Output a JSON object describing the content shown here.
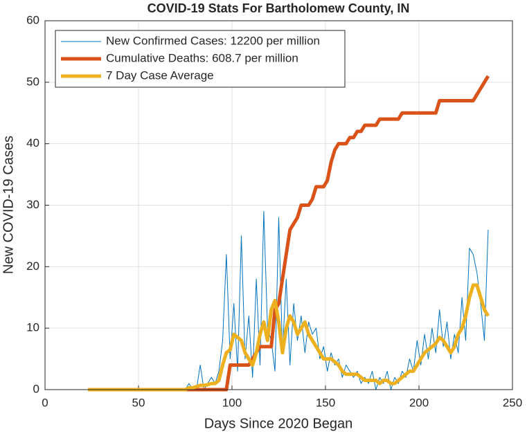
{
  "chart_data": {
    "type": "line",
    "title": "COVID-19 Stats For Bartholomew County, IN",
    "xlabel": "Days Since 2020 Began",
    "ylabel": "New COVID-19 Cases",
    "x": [
      23,
      25,
      27,
      29,
      31,
      33,
      35,
      37,
      39,
      41,
      43,
      45,
      47,
      49,
      51,
      53,
      55,
      57,
      59,
      61,
      63,
      65,
      67,
      69,
      71,
      73,
      75,
      77,
      79,
      81,
      83,
      85,
      87,
      89,
      91,
      93,
      95,
      97,
      99,
      101,
      103,
      105,
      107,
      109,
      111,
      113,
      115,
      117,
      119,
      121,
      123,
      125,
      127,
      129,
      131,
      133,
      135,
      137,
      139,
      141,
      143,
      145,
      147,
      149,
      151,
      153,
      155,
      157,
      159,
      161,
      163,
      165,
      167,
      169,
      171,
      173,
      175,
      177,
      179,
      181,
      183,
      185,
      187,
      189,
      191,
      193,
      195,
      197,
      199,
      201,
      203,
      205,
      207,
      209,
      211,
      213,
      215,
      217,
      219,
      221,
      223,
      225,
      227,
      229,
      231,
      233,
      235,
      237
    ],
    "series": [
      {
        "name": "New Confirmed Cases: 12200 per million",
        "color": "#0072BD",
        "width": 1,
        "values": [
          0,
          0,
          0,
          0,
          0,
          0,
          0,
          0,
          0,
          0,
          0,
          0,
          0,
          0,
          0,
          0,
          0,
          0,
          0,
          0,
          0,
          0,
          0,
          0,
          0,
          0,
          0,
          1,
          0,
          0,
          4,
          0,
          1,
          2,
          1,
          3,
          8,
          22,
          5,
          14,
          3,
          25,
          5,
          12,
          2,
          18,
          4,
          29,
          10,
          8,
          3,
          28,
          6,
          18,
          4,
          14,
          8,
          12,
          6,
          11,
          9,
          10,
          5,
          7,
          3,
          6,
          4,
          5,
          2,
          4,
          3,
          2,
          3,
          1,
          2,
          1,
          3,
          0,
          2,
          1,
          3,
          0,
          2,
          1,
          3,
          2,
          5,
          3,
          8,
          4,
          9,
          5,
          10,
          6,
          13,
          7,
          11,
          5,
          9,
          6,
          15,
          8,
          23,
          22,
          19,
          14,
          8,
          26
        ]
      },
      {
        "name": "Cumulative Deaths: 608.7 per million",
        "color": "#D95319",
        "width": 5,
        "values": [
          0,
          0,
          0,
          0,
          0,
          0,
          0,
          0,
          0,
          0,
          0,
          0,
          0,
          0,
          0,
          0,
          0,
          0,
          0,
          0,
          0,
          0,
          0,
          0,
          0,
          0,
          0,
          0,
          0,
          0,
          0,
          0,
          0,
          0,
          0,
          0,
          0,
          0,
          4,
          4,
          4,
          4,
          4,
          4,
          5,
          6,
          7,
          7,
          7,
          7,
          13,
          14,
          18,
          22,
          26,
          27,
          28,
          30,
          30,
          30,
          31,
          33,
          33,
          33,
          34,
          37,
          39,
          40,
          40,
          40,
          41,
          41,
          42,
          42,
          43,
          43,
          43,
          43,
          44,
          44,
          44,
          44,
          44,
          44,
          45,
          45,
          45,
          45,
          45,
          45,
          45,
          45,
          45,
          45,
          47,
          47,
          47,
          47,
          47,
          47,
          47,
          47,
          47,
          47,
          48,
          49,
          50,
          51
        ]
      },
      {
        "name": "7 Day Case Average",
        "color": "#EDB120",
        "width": 5,
        "values": [
          0,
          0,
          0,
          0,
          0,
          0,
          0,
          0,
          0,
          0,
          0,
          0,
          0,
          0,
          0,
          0,
          0,
          0,
          0,
          0,
          0,
          0,
          0,
          0,
          0,
          0,
          0,
          0.3,
          0.3,
          0.5,
          0.7,
          0.7,
          0.8,
          1,
          1,
          1.5,
          4,
          6,
          6.5,
          9,
          8.5,
          8,
          6,
          5,
          4,
          6,
          9,
          11,
          8,
          13,
          14.5,
          11,
          6,
          10,
          12,
          11,
          9,
          10,
          11,
          9,
          8,
          7,
          6,
          5,
          5,
          5,
          4.5,
          4,
          3,
          2.5,
          2.5,
          2.5,
          2.5,
          2,
          1.5,
          1.5,
          1.5,
          1.5,
          1,
          1.5,
          1.5,
          1,
          1,
          1.5,
          2,
          2.5,
          3,
          3,
          4,
          5,
          6,
          6.5,
          7,
          7.5,
          8.5,
          8,
          7,
          6,
          7,
          9,
          10,
          12,
          15,
          17,
          17,
          15,
          13,
          12
        ]
      }
    ],
    "xlim": [
      0,
      250
    ],
    "xticks": [
      0,
      50,
      100,
      150,
      200,
      250
    ],
    "ylim": [
      0,
      60
    ],
    "yticks": [
      0,
      10,
      20,
      30,
      40,
      50,
      60
    ],
    "grid": true,
    "legend": "top-left"
  }
}
